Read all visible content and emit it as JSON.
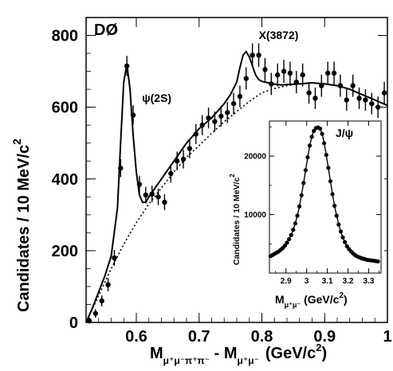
{
  "chart_data": [
    {
      "type": "scatter",
      "experiment_label": "DØ",
      "xlabel_main": "M",
      "xlabel_sub1": "μ⁺μ⁻π⁺π⁻",
      "xlabel_mid": " - M",
      "xlabel_sub2": "μ⁺μ⁻",
      "xlabel_unit": "(GeV/c",
      "xlabel_unit_sup": "2",
      "xlabel_unit_close": ")",
      "ylabel": "Candidates / 10 MeV/c",
      "ylabel_sup": "2",
      "xlim": [
        0.52,
        1.0
      ],
      "ylim": [
        0,
        850
      ],
      "x_ticks": [
        0.6,
        0.7,
        0.8,
        0.9,
        1.0
      ],
      "x_tick_labels": [
        "0.6",
        "0.7",
        "0.8",
        "0.9",
        "1"
      ],
      "y_ticks": [
        0,
        200,
        400,
        600,
        800
      ],
      "y_tick_labels": [
        "0",
        "200",
        "400",
        "600",
        "800"
      ],
      "annotations": [
        {
          "text": "ψ(2S)",
          "x": 0.609,
          "y": 615
        },
        {
          "text": "X(3872)",
          "x": 0.795,
          "y": 790
        }
      ],
      "series": [
        {
          "kind": "data",
          "x": [
            0.525,
            0.535,
            0.545,
            0.555,
            0.565,
            0.575,
            0.585,
            0.595,
            0.605,
            0.615,
            0.625,
            0.635,
            0.645,
            0.655,
            0.665,
            0.675,
            0.685,
            0.695,
            0.705,
            0.715,
            0.725,
            0.735,
            0.745,
            0.755,
            0.765,
            0.775,
            0.785,
            0.795,
            0.805,
            0.815,
            0.825,
            0.835,
            0.845,
            0.855,
            0.865,
            0.875,
            0.885,
            0.895,
            0.905,
            0.915,
            0.925,
            0.935,
            0.945,
            0.955,
            0.965,
            0.975,
            0.985,
            0.995
          ],
          "y": [
            5,
            25,
            60,
            105,
            180,
            430,
            715,
            578,
            385,
            355,
            358,
            350,
            335,
            415,
            450,
            455,
            485,
            525,
            550,
            570,
            560,
            575,
            585,
            610,
            630,
            680,
            745,
            745,
            705,
            665,
            690,
            700,
            695,
            670,
            690,
            640,
            625,
            660,
            695,
            695,
            660,
            620,
            660,
            625,
            620,
            610,
            600,
            640
          ],
          "err": [
            8,
            12,
            15,
            18,
            22,
            25,
            28,
            27,
            24,
            23,
            23,
            23,
            22,
            25,
            26,
            26,
            27,
            28,
            28,
            29,
            28,
            29,
            29,
            30,
            30,
            31,
            33,
            33,
            32,
            31,
            32,
            32,
            32,
            31,
            32,
            30,
            30,
            31,
            32,
            32,
            31,
            30,
            31,
            30,
            30,
            30,
            30,
            31
          ]
        },
        {
          "kind": "fit",
          "x": [
            0.52,
            0.53,
            0.54,
            0.55,
            0.56,
            0.57,
            0.575,
            0.58,
            0.585,
            0.59,
            0.595,
            0.6,
            0.605,
            0.61,
            0.615,
            0.62,
            0.63,
            0.64,
            0.65,
            0.66,
            0.67,
            0.68,
            0.69,
            0.7,
            0.71,
            0.72,
            0.73,
            0.74,
            0.75,
            0.76,
            0.765,
            0.77,
            0.775,
            0.78,
            0.785,
            0.79,
            0.795,
            0.8,
            0.81,
            0.82,
            0.83,
            0.84,
            0.86,
            0.88,
            0.9,
            0.92,
            0.94,
            0.96,
            0.98,
            1.0
          ],
          "y": [
            0,
            40,
            85,
            130,
            185,
            320,
            500,
            670,
            720,
            650,
            520,
            420,
            355,
            335,
            335,
            350,
            375,
            400,
            425,
            450,
            475,
            500,
            520,
            540,
            555,
            570,
            590,
            610,
            635,
            670,
            710,
            745,
            755,
            740,
            715,
            690,
            677,
            672,
            668,
            664,
            662,
            663,
            665,
            668,
            665,
            660,
            650,
            635,
            620,
            605
          ]
        },
        {
          "kind": "background",
          "x": [
            0.52,
            0.54,
            0.56,
            0.58,
            0.6,
            0.62,
            0.64,
            0.66,
            0.68,
            0.7,
            0.72,
            0.74,
            0.76,
            0.78,
            0.8,
            0.82,
            0.84,
            0.86,
            0.88,
            0.9,
            0.92,
            0.94,
            0.96,
            0.98,
            1.0
          ],
          "y": [
            0,
            75,
            150,
            218,
            278,
            330,
            375,
            420,
            460,
            493,
            527,
            560,
            588,
            616,
            640,
            652,
            660,
            665,
            668,
            665,
            660,
            650,
            635,
            620,
            605
          ]
        }
      ]
    },
    {
      "type": "scatter",
      "title": "J/ψ",
      "xlabel_main": "M",
      "xlabel_sub": "μ⁺μ⁻",
      "xlabel_unit": " (GeV/c",
      "xlabel_unit_sup": "2",
      "xlabel_unit_close": ")",
      "ylabel": "Candidates / 10 MeV/c",
      "ylabel_sup": "2",
      "xlim": [
        2.82,
        3.36
      ],
      "ylim": [
        0,
        26000
      ],
      "x_ticks": [
        2.9,
        3.0,
        3.1,
        3.2,
        3.3
      ],
      "x_tick_labels": [
        "2.9",
        "3",
        "3.1",
        "3.2",
        "3.3"
      ],
      "y_ticks": [
        10000,
        20000
      ],
      "y_tick_labels": [
        "10000",
        "20000"
      ],
      "series": [
        {
          "kind": "data",
          "x": [
            2.825,
            2.835,
            2.845,
            2.855,
            2.865,
            2.875,
            2.885,
            2.895,
            2.905,
            2.915,
            2.925,
            2.935,
            2.945,
            2.955,
            2.965,
            2.975,
            2.985,
            2.995,
            3.005,
            3.015,
            3.025,
            3.035,
            3.045,
            3.055,
            3.065,
            3.075,
            3.085,
            3.095,
            3.105,
            3.115,
            3.125,
            3.135,
            3.145,
            3.155,
            3.165,
            3.175,
            3.185,
            3.195,
            3.205,
            3.215,
            3.225,
            3.235,
            3.245,
            3.255,
            3.265,
            3.275,
            3.285,
            3.295,
            3.305,
            3.315,
            3.325,
            3.335,
            3.345
          ],
          "y": [
            2900,
            3100,
            3300,
            3500,
            3700,
            4000,
            4300,
            4700,
            5200,
            5800,
            6500,
            7400,
            8500,
            9800,
            11400,
            13300,
            15400,
            17600,
            19800,
            21800,
            23300,
            24300,
            24800,
            24900,
            24700,
            23800,
            22200,
            20200,
            18000,
            15700,
            13500,
            11500,
            9800,
            8300,
            7100,
            6100,
            5300,
            4600,
            4100,
            3700,
            3350,
            3050,
            2850,
            2700,
            2550,
            2450,
            2350,
            2250,
            2200,
            2150,
            2100,
            2050,
            2000
          ]
        }
      ]
    }
  ]
}
